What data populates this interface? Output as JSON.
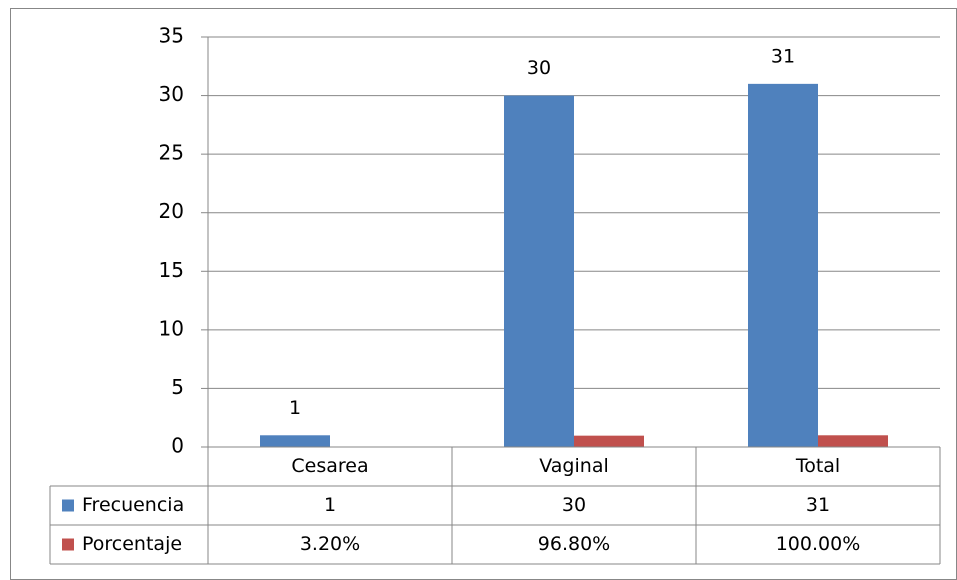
{
  "chart_data": {
    "type": "bar",
    "categories": [
      "Cesarea",
      "Vaginal",
      "Total"
    ],
    "series": [
      {
        "name": "Frecuencia",
        "color": "#4f81bd",
        "values": [
          1,
          30,
          31
        ]
      },
      {
        "name": "Porcentaje",
        "color": "#c0504d",
        "values": [
          0.032,
          0.968,
          1.0
        ],
        "value_labels": [
          "3.20%",
          "96.80%",
          "100.00%"
        ]
      }
    ],
    "ylim": [
      0,
      35
    ],
    "yticks": [
      0,
      5,
      10,
      15,
      20,
      25,
      30,
      35
    ],
    "grid": true,
    "data_table": true
  }
}
